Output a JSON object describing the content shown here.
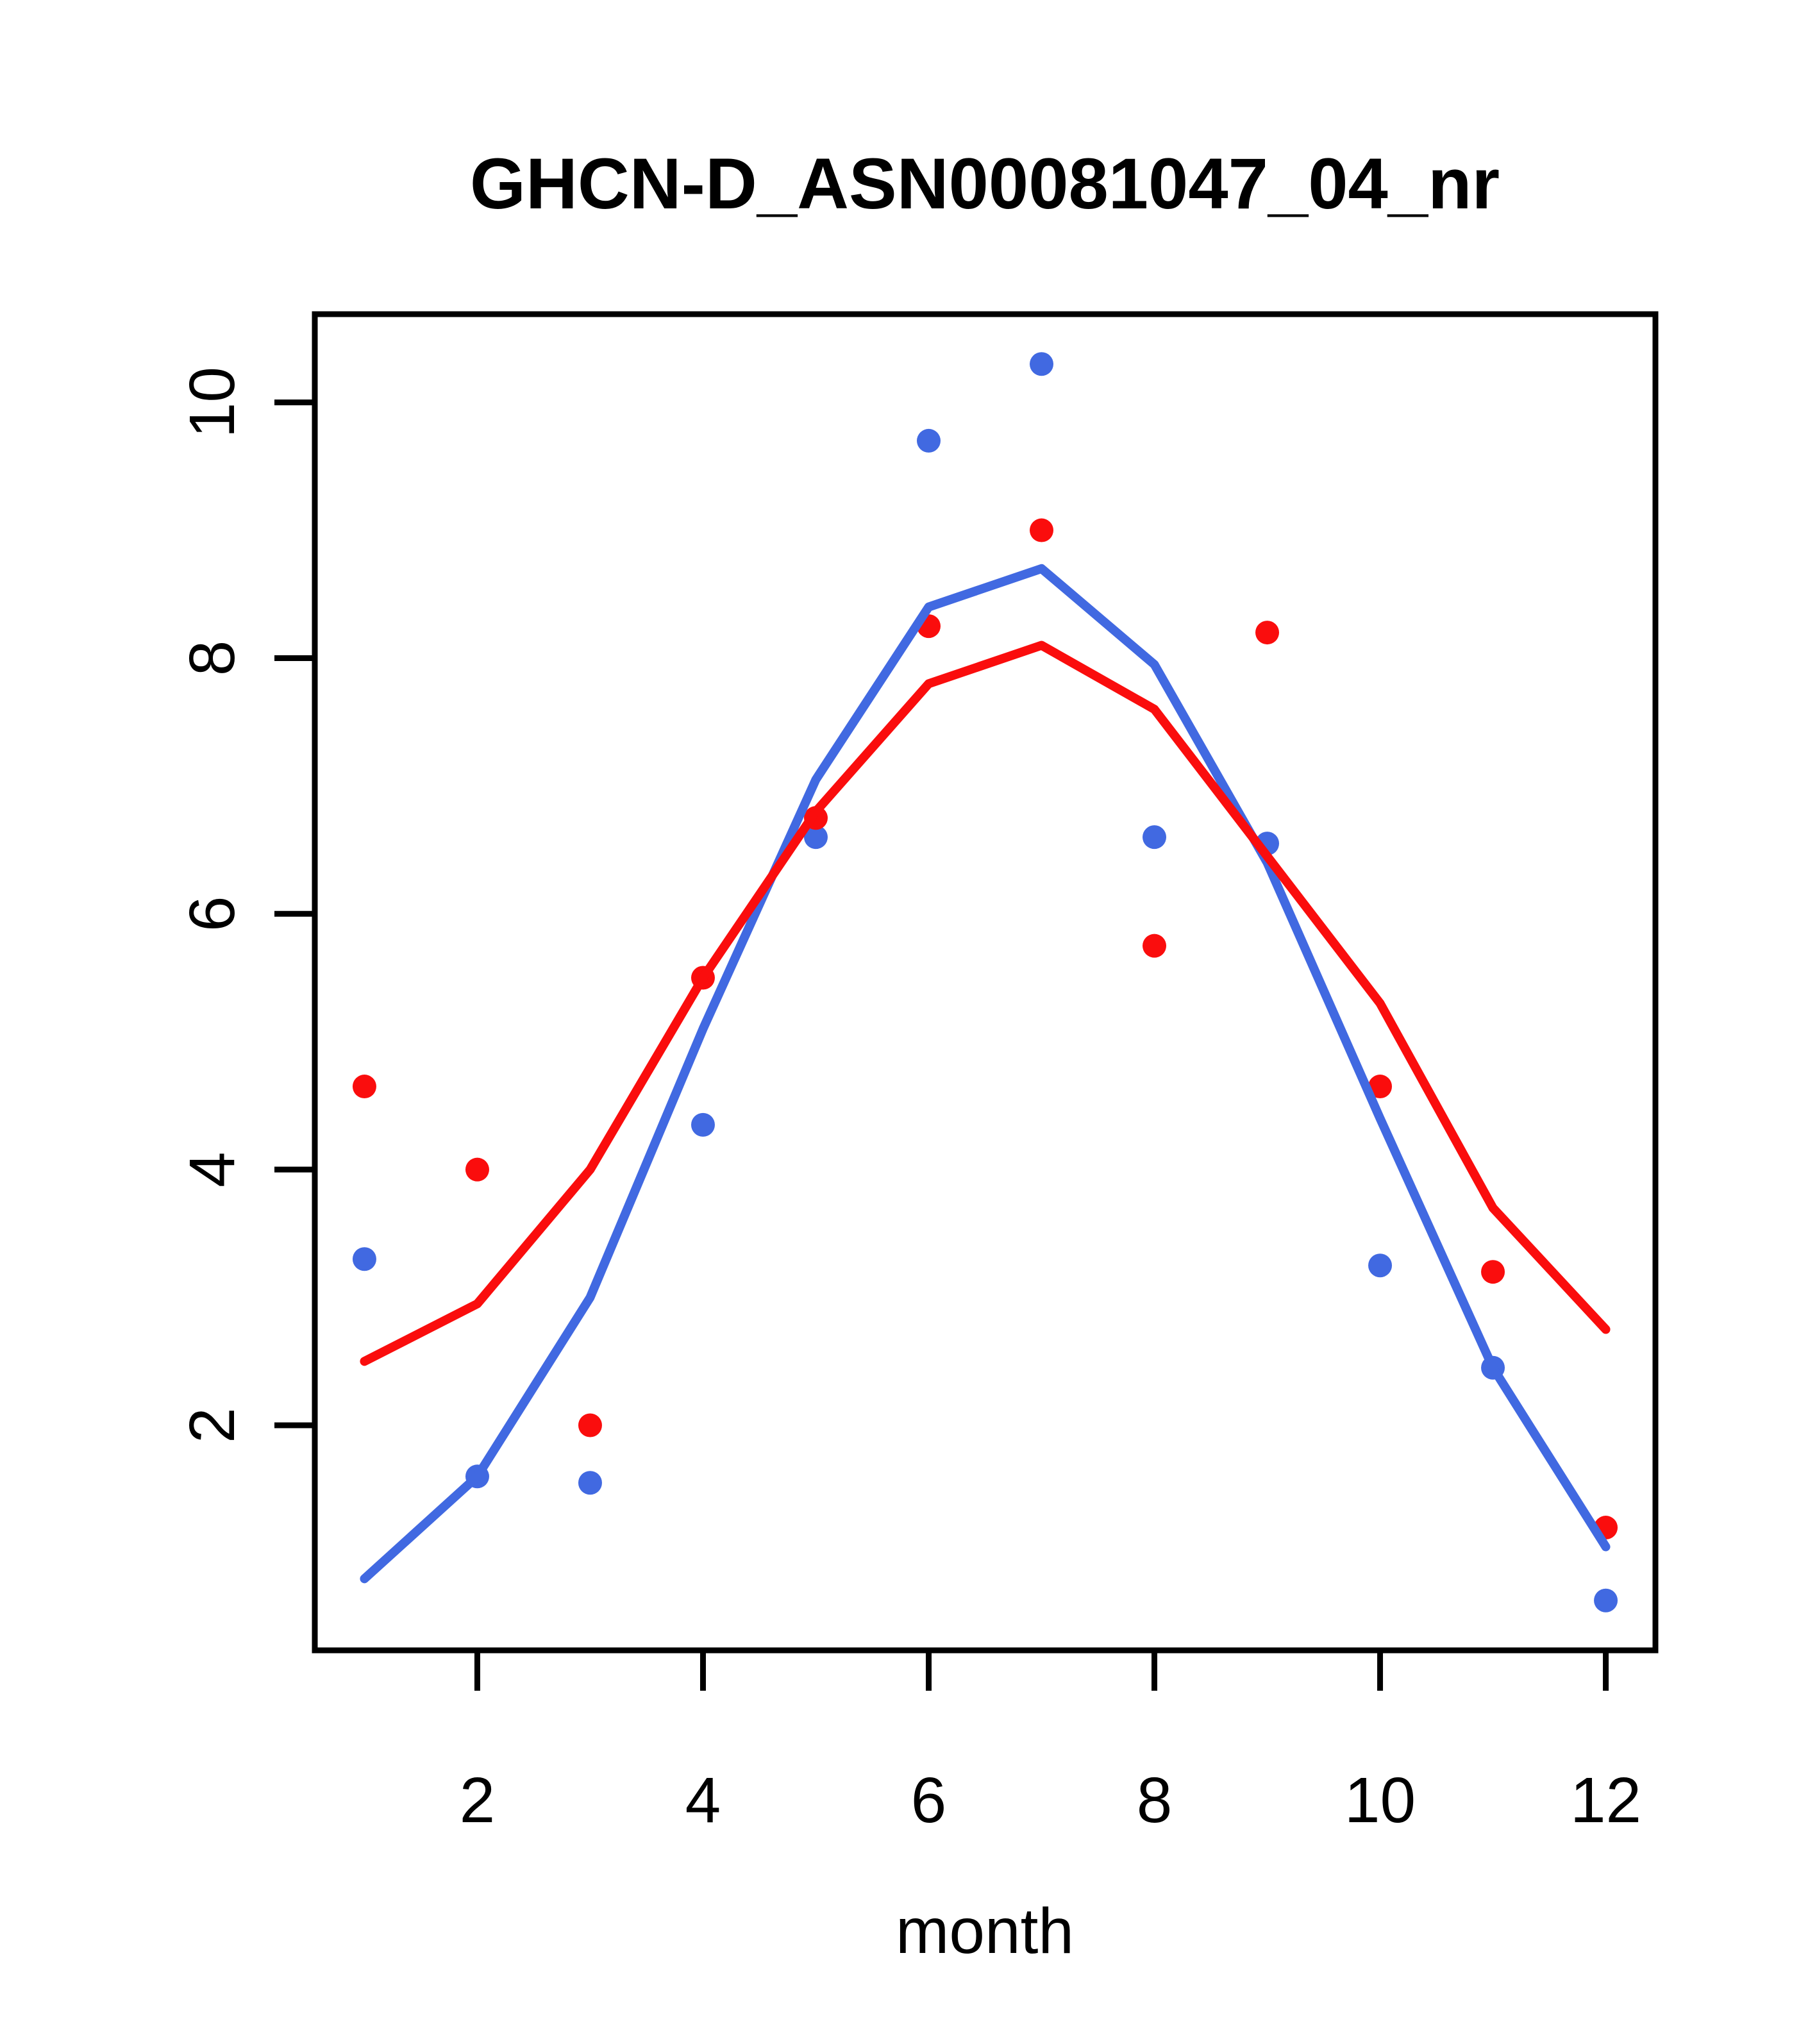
{
  "title": "GHCN-D_ASN00081047_04_nr",
  "colors": {
    "red": "#fa0d0d",
    "blue": "#4169e1",
    "axis": "#000000",
    "background": "#ffffff"
  },
  "chart_data": {
    "type": "scatter",
    "title": "GHCN-D_ASN00081047_04_nr",
    "xlabel": "month",
    "ylabel": "",
    "grid": false,
    "legend": "none",
    "x": [
      1,
      2,
      3,
      4,
      5,
      6,
      7,
      8,
      9,
      10,
      11,
      12
    ],
    "x_ticks": [
      2,
      4,
      6,
      8,
      10,
      12
    ],
    "y_ticks": [
      2,
      4,
      6,
      8,
      10
    ],
    "xlim": [
      0.56,
      12.44
    ],
    "ylim": [
      0.24,
      10.69
    ],
    "series": [
      {
        "name": "blue-points",
        "kind": "points",
        "color_key": "blue",
        "values": [
          3.3,
          1.6,
          1.55,
          4.35,
          6.6,
          9.7,
          10.3,
          6.6,
          6.55,
          3.25,
          2.45,
          0.63
        ]
      },
      {
        "name": "red-points",
        "kind": "points",
        "color_key": "red",
        "values": [
          4.65,
          4.0,
          2.0,
          5.5,
          6.75,
          8.25,
          9.0,
          5.75,
          8.2,
          4.65,
          3.2,
          1.2
        ]
      },
      {
        "name": "blue-line",
        "kind": "line",
        "color_key": "blue",
        "values": [
          0.8,
          1.6,
          3.0,
          5.1,
          7.05,
          8.4,
          8.7,
          7.95,
          6.4,
          4.4,
          2.45,
          1.05
        ]
      },
      {
        "name": "red-line",
        "kind": "line",
        "color_key": "red",
        "values": [
          2.5,
          2.95,
          4.0,
          5.5,
          6.8,
          7.8,
          8.1,
          7.6,
          6.45,
          5.3,
          3.7,
          2.75
        ]
      }
    ]
  }
}
